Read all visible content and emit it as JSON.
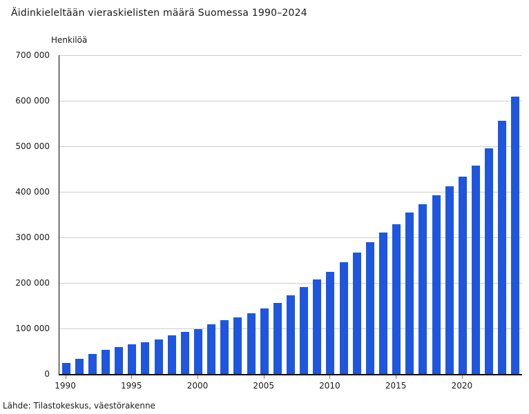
{
  "chart_data": {
    "type": "bar",
    "title": "Äidinkieleltään vieraskielisten määrä Suomessa 1990–2024",
    "unit_label": "Henkilöä",
    "source": "Lähde: Tilastokeskus, väestörakenne",
    "x": [
      1990,
      1991,
      1992,
      1993,
      1994,
      1995,
      1996,
      1997,
      1998,
      1999,
      2000,
      2001,
      2002,
      2003,
      2004,
      2005,
      2006,
      2007,
      2008,
      2009,
      2010,
      2011,
      2012,
      2013,
      2014,
      2015,
      2016,
      2017,
      2018,
      2019,
      2020,
      2021,
      2022,
      2023,
      2024
    ],
    "values": [
      24783,
      33500,
      43898,
      52893,
      58800,
      65649,
      69744,
      76500,
      85000,
      93000,
      99227,
      109197,
      117857,
      124800,
      133183,
      144334,
      156700,
      172928,
      190538,
      207037,
      224388,
      244827,
      266949,
      289068,
      310306,
      329562,
      353993,
      373325,
      391746,
      412644,
      432847,
      457635,
      495996,
      556100,
      609000
    ],
    "ylim": [
      0,
      700000
    ],
    "y_ticks": [
      0,
      100000,
      200000,
      300000,
      400000,
      500000,
      600000,
      700000
    ],
    "y_tick_labels": [
      "0",
      "100 000",
      "200 000",
      "300 000",
      "400 000",
      "500 000",
      "600 000",
      "700 000"
    ],
    "x_ticks": [
      1990,
      1995,
      2000,
      2005,
      2010,
      2015,
      2020
    ],
    "x_tick_labels": [
      "1990",
      "1995",
      "2000",
      "2005",
      "2010",
      "2015",
      "2020"
    ],
    "grid": true,
    "legend": false,
    "bar_color": "#1e56e0",
    "grid_color": "#cccccc",
    "axis_color": "#000000",
    "text_color": "#1a1a1a"
  }
}
